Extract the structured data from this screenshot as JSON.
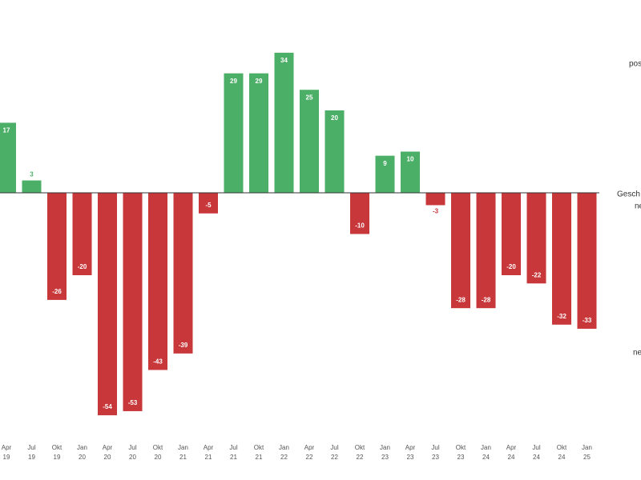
{
  "chart_data": {
    "type": "bar",
    "categories": [
      "Apr 19",
      "Jul 19",
      "Okt 19",
      "Jan 20",
      "Apr 20",
      "Jul 20",
      "Okt 20",
      "Jan 21",
      "Apr 21",
      "Jul 21",
      "Okt 21",
      "Jan 22",
      "Apr 22",
      "Jul 22",
      "Okt 22",
      "Jan 23",
      "Apr 23",
      "Jul 23",
      "Okt 23",
      "Jan 24",
      "Apr 24",
      "Jul 24",
      "Okt 24",
      "Jan 25"
    ],
    "values": [
      17,
      3,
      -26,
      -20,
      -54,
      -53,
      -43,
      -39,
      -5,
      29,
      29,
      34,
      25,
      20,
      -10,
      9,
      10,
      -3,
      -28,
      -28,
      -20,
      -22,
      -32,
      -33
    ],
    "positive_color": "#4caf67",
    "negative_color": "#c8373a",
    "ylim": [
      -60,
      40
    ],
    "side_labels": [
      "pos",
      "Gesch",
      "ne",
      "ne"
    ]
  }
}
